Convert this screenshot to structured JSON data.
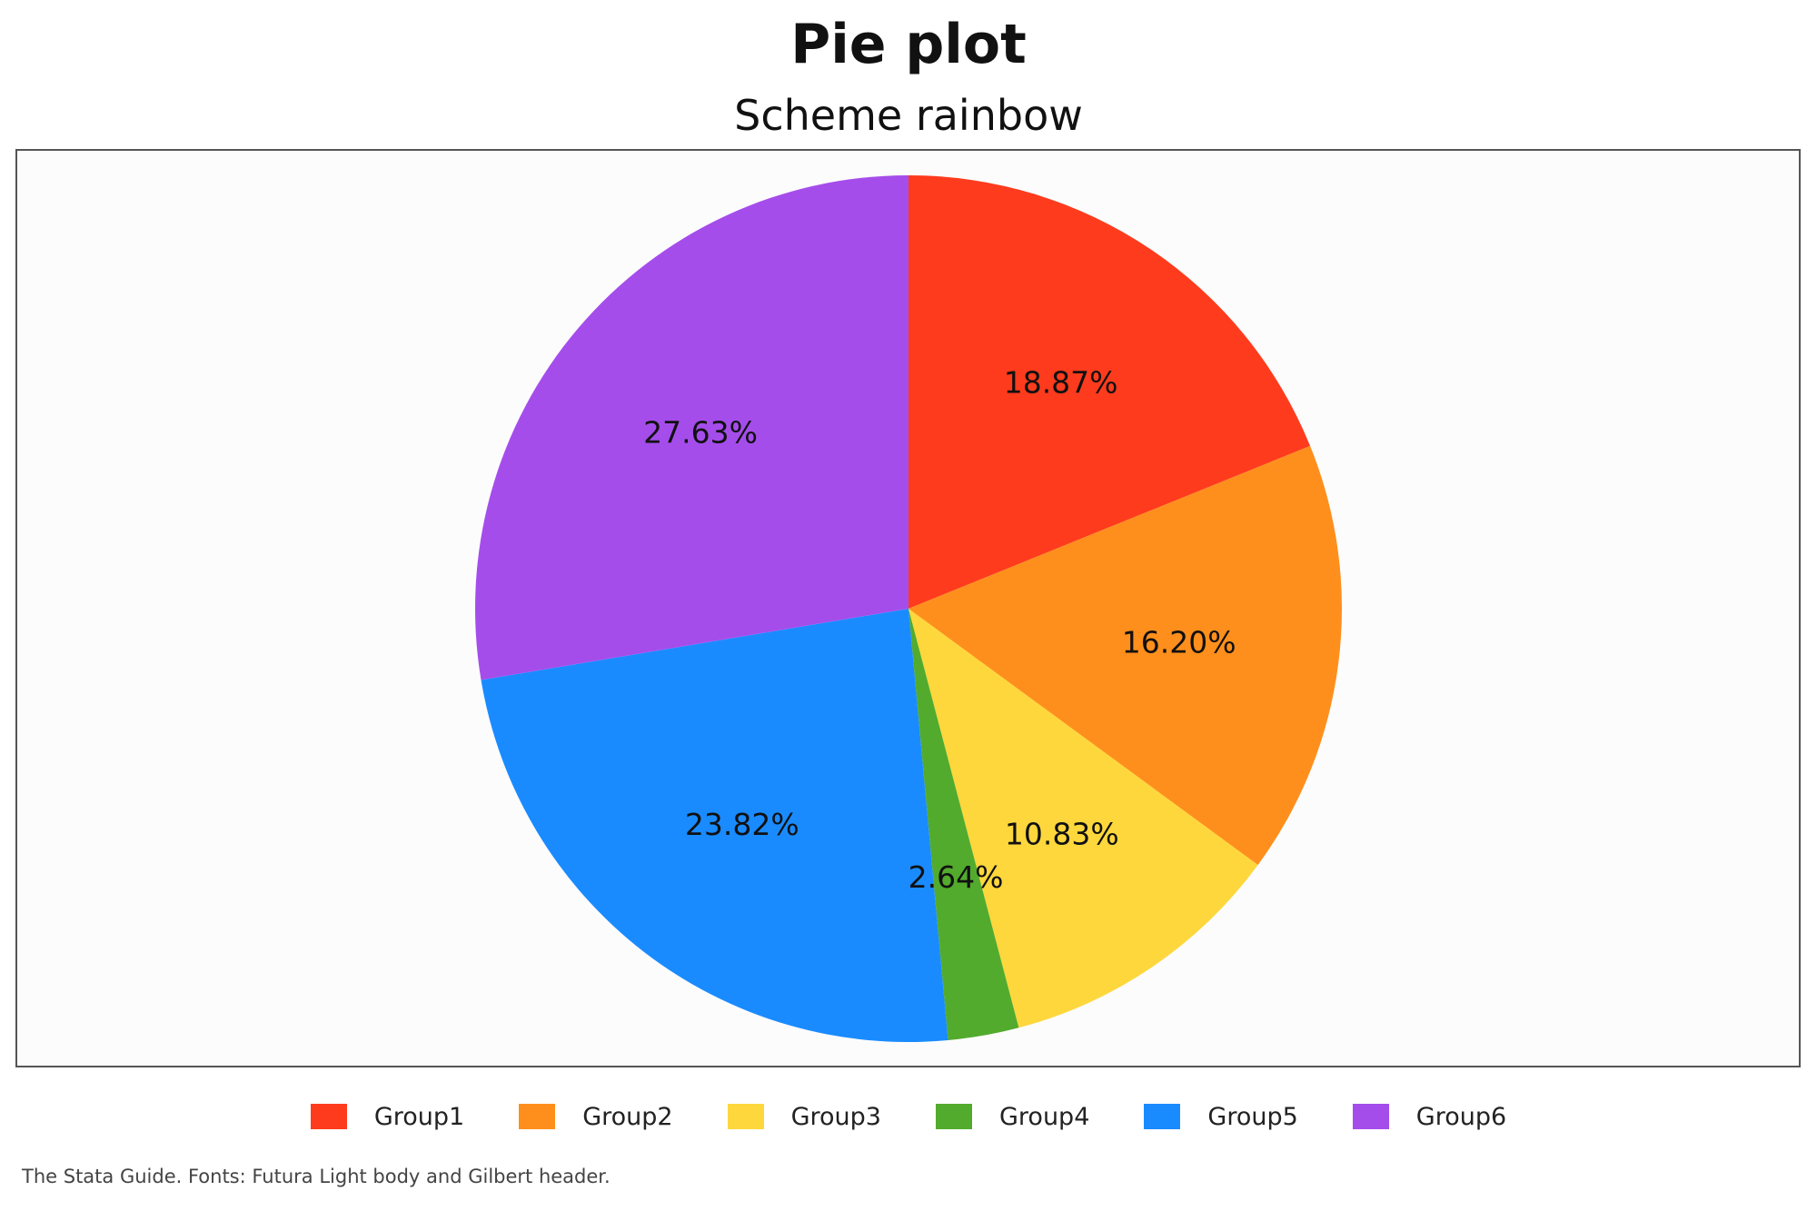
{
  "chart_data": {
    "type": "pie",
    "title": "Pie plot",
    "subtitle": "Scheme rainbow",
    "slices": [
      {
        "label": "Group1",
        "value": 18.87,
        "display": "18.87%",
        "color": "#ff3b1d"
      },
      {
        "label": "Group2",
        "value": 16.2,
        "display": "16.20%",
        "color": "#ff8f1c"
      },
      {
        "label": "Group3",
        "value": 10.83,
        "display": "10.83%",
        "color": "#fed73c"
      },
      {
        "label": "Group4",
        "value": 2.64,
        "display": "2.64%",
        "color": "#52ab2d"
      },
      {
        "label": "Group5",
        "value": 23.82,
        "display": "23.82%",
        "color": "#1a8bff"
      },
      {
        "label": "Group6",
        "value": 27.63,
        "display": "27.63%",
        "color": "#a54deb"
      }
    ],
    "start": "12 o'clock",
    "direction": "clockwise",
    "legend": {
      "position": "bottom"
    }
  },
  "footnote": "The Stata Guide. Fonts: Futura Light body and Gilbert header."
}
